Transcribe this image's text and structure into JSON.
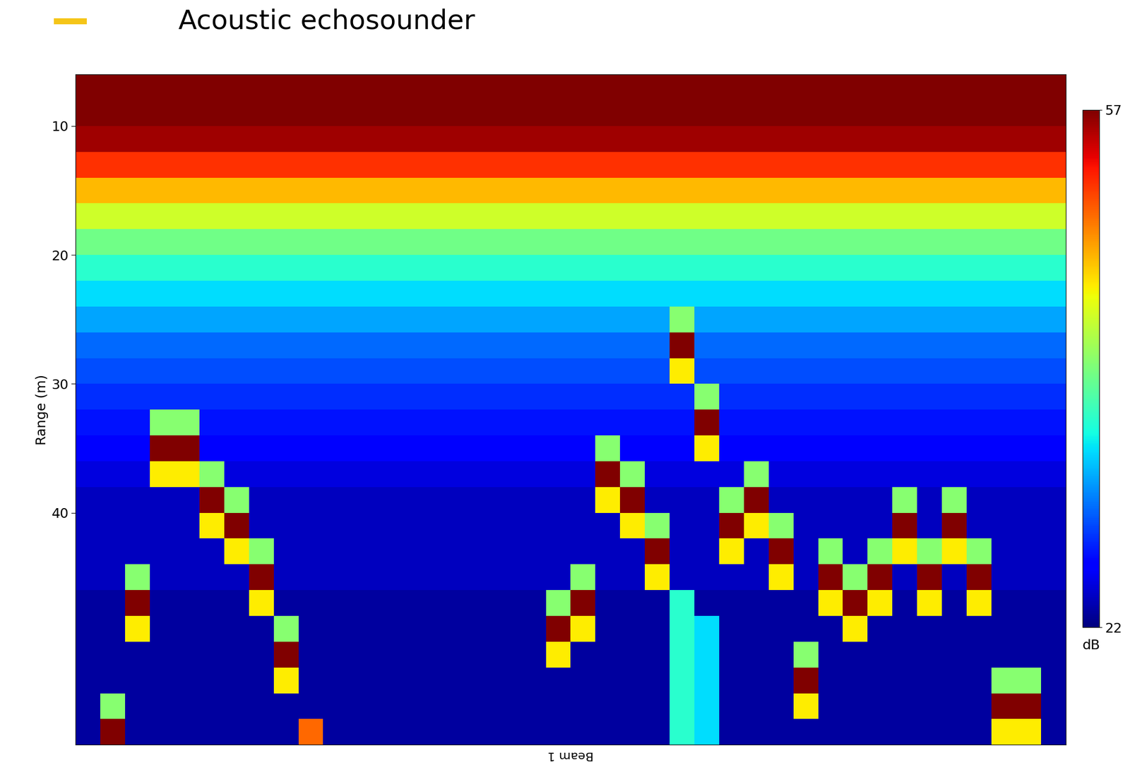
{
  "chart_data": {
    "type": "heatmap",
    "title": "Acoustic echosounder",
    "y_label": "Range (m)",
    "x_label": "Beam 1",
    "ylim": [
      58,
      6
    ],
    "yticks": [
      10,
      20,
      30,
      40
    ],
    "tick_labels": "y",
    "y_edges": [
      6,
      8,
      10,
      12,
      14,
      16,
      18,
      20,
      22,
      24,
      26,
      28,
      30,
      32,
      34,
      36,
      38,
      40,
      42,
      44,
      46,
      48,
      50,
      52,
      54,
      56,
      58
    ],
    "colorbar": {
      "range": [
        22,
        57
      ],
      "ticks": [
        22,
        57
      ],
      "label": "dB"
    },
    "cells": [
      [
        57,
        57,
        57,
        57,
        57,
        57,
        57,
        57,
        57,
        57,
        57,
        57,
        57,
        57,
        57,
        57,
        57,
        57,
        57,
        57,
        57,
        57,
        57,
        57,
        57,
        57,
        57,
        57,
        57,
        57,
        57,
        57,
        57,
        57,
        57,
        57,
        57,
        57,
        57,
        57
      ],
      [
        57,
        57,
        57,
        57,
        57,
        57,
        57,
        57,
        57,
        57,
        57,
        57,
        57,
        57,
        57,
        57,
        57,
        57,
        57,
        57,
        57,
        57,
        57,
        57,
        57,
        57,
        57,
        57,
        57,
        57,
        57,
        57,
        57,
        57,
        57,
        57,
        57,
        57,
        57,
        57
      ],
      [
        56,
        56,
        56,
        56,
        56,
        56,
        56,
        56,
        56,
        56,
        56,
        56,
        56,
        56,
        56,
        56,
        56,
        56,
        56,
        56,
        56,
        56,
        56,
        56,
        56,
        56,
        56,
        56,
        56,
        56,
        56,
        56,
        56,
        56,
        56,
        56,
        56,
        56,
        56,
        56
      ],
      [
        52,
        52,
        52,
        52,
        52,
        52,
        52,
        52,
        52,
        52,
        52,
        52,
        52,
        52,
        52,
        52,
        52,
        52,
        52,
        52,
        52,
        52,
        52,
        52,
        52,
        52,
        52,
        52,
        52,
        52,
        52,
        52,
        52,
        52,
        52,
        52,
        52,
        52,
        52,
        52
      ],
      [
        47,
        47,
        47,
        47,
        47,
        47,
        47,
        47,
        47,
        47,
        47,
        47,
        47,
        47,
        47,
        47,
        47,
        47,
        47,
        47,
        47,
        47,
        47,
        47,
        47,
        47,
        47,
        47,
        47,
        47,
        47,
        47,
        47,
        47,
        47,
        47,
        47,
        47,
        47,
        47
      ],
      [
        43,
        43,
        43,
        43,
        43,
        43,
        43,
        43,
        43,
        43,
        43,
        43,
        43,
        43,
        43,
        43,
        43,
        43,
        43,
        43,
        43,
        43,
        43,
        43,
        43,
        43,
        43,
        43,
        43,
        43,
        43,
        43,
        43,
        43,
        43,
        43,
        43,
        43,
        43,
        43
      ],
      [
        39,
        39,
        39,
        39,
        39,
        39,
        39,
        39,
        39,
        39,
        39,
        39,
        39,
        39,
        39,
        39,
        39,
        39,
        39,
        39,
        39,
        39,
        39,
        39,
        39,
        39,
        39,
        39,
        39,
        39,
        39,
        39,
        39,
        39,
        39,
        39,
        39,
        39,
        39,
        39
      ],
      [
        36,
        36,
        36,
        36,
        36,
        36,
        36,
        36,
        36,
        36,
        36,
        36,
        36,
        36,
        36,
        36,
        36,
        36,
        36,
        36,
        36,
        36,
        36,
        36,
        36,
        36,
        36,
        36,
        36,
        36,
        36,
        36,
        36,
        36,
        36,
        36,
        36,
        36,
        36,
        36
      ],
      [
        34,
        34,
        34,
        34,
        34,
        34,
        34,
        34,
        34,
        34,
        34,
        34,
        34,
        34,
        34,
        34,
        34,
        34,
        34,
        34,
        34,
        34,
        34,
        34,
        34,
        34,
        34,
        34,
        34,
        34,
        34,
        34,
        34,
        34,
        34,
        34,
        34,
        34,
        34,
        34
      ],
      [
        32,
        32,
        32,
        32,
        32,
        32,
        32,
        32,
        32,
        32,
        32,
        32,
        32,
        32,
        32,
        32,
        32,
        32,
        32,
        32,
        32,
        32,
        32,
        32,
        40,
        32,
        32,
        32,
        32,
        32,
        32,
        32,
        32,
        32,
        32,
        32,
        32,
        32,
        32,
        32
      ],
      [
        30,
        30,
        30,
        30,
        30,
        30,
        30,
        30,
        30,
        30,
        30,
        30,
        30,
        30,
        30,
        30,
        30,
        30,
        30,
        30,
        30,
        30,
        30,
        30,
        57,
        30,
        30,
        30,
        30,
        30,
        30,
        30,
        30,
        30,
        30,
        30,
        30,
        30,
        30,
        30
      ],
      [
        29,
        29,
        29,
        29,
        29,
        29,
        29,
        29,
        29,
        29,
        29,
        29,
        29,
        29,
        29,
        29,
        29,
        29,
        29,
        29,
        29,
        29,
        29,
        29,
        45,
        29,
        29,
        29,
        29,
        29,
        29,
        29,
        29,
        29,
        29,
        29,
        29,
        29,
        29,
        29
      ],
      [
        28,
        28,
        28,
        28,
        28,
        28,
        28,
        28,
        28,
        28,
        28,
        28,
        28,
        28,
        28,
        28,
        28,
        28,
        28,
        28,
        28,
        28,
        28,
        28,
        28,
        40,
        28,
        28,
        28,
        28,
        28,
        28,
        28,
        28,
        28,
        28,
        28,
        28,
        28,
        28
      ],
      [
        27,
        27,
        27,
        40,
        40,
        27,
        27,
        27,
        27,
        27,
        27,
        27,
        27,
        27,
        27,
        27,
        27,
        27,
        27,
        27,
        27,
        27,
        27,
        27,
        27,
        57,
        27,
        27,
        27,
        27,
        27,
        27,
        27,
        27,
        27,
        27,
        27,
        27,
        27,
        27
      ],
      [
        26,
        26,
        26,
        57,
        57,
        26,
        26,
        26,
        26,
        26,
        26,
        26,
        26,
        26,
        26,
        26,
        26,
        26,
        26,
        26,
        26,
        40,
        26,
        26,
        26,
        45,
        26,
        26,
        26,
        26,
        26,
        26,
        26,
        26,
        26,
        26,
        26,
        26,
        26,
        26
      ],
      [
        25,
        25,
        25,
        45,
        45,
        40,
        25,
        25,
        25,
        25,
        25,
        25,
        25,
        25,
        25,
        25,
        25,
        25,
        25,
        25,
        25,
        57,
        40,
        25,
        25,
        25,
        25,
        40,
        25,
        25,
        25,
        25,
        25,
        25,
        25,
        25,
        25,
        25,
        25,
        25
      ],
      [
        24,
        24,
        24,
        24,
        24,
        57,
        40,
        24,
        24,
        24,
        24,
        24,
        24,
        24,
        24,
        24,
        24,
        24,
        24,
        24,
        24,
        45,
        57,
        24,
        24,
        24,
        40,
        57,
        24,
        24,
        24,
        24,
        24,
        40,
        24,
        40,
        24,
        24,
        24,
        24
      ],
      [
        24,
        24,
        24,
        24,
        24,
        45,
        57,
        24,
        24,
        24,
        24,
        24,
        24,
        24,
        24,
        24,
        24,
        24,
        24,
        24,
        24,
        24,
        45,
        40,
        24,
        24,
        57,
        45,
        40,
        24,
        24,
        24,
        24,
        57,
        24,
        57,
        24,
        24,
        24,
        24
      ],
      [
        24,
        24,
        24,
        24,
        24,
        24,
        45,
        40,
        24,
        24,
        24,
        24,
        24,
        24,
        24,
        24,
        24,
        24,
        24,
        24,
        24,
        24,
        24,
        57,
        24,
        24,
        45,
        24,
        57,
        24,
        40,
        24,
        40,
        45,
        40,
        45,
        40,
        24,
        24,
        24
      ],
      [
        24,
        24,
        40,
        24,
        24,
        24,
        24,
        57,
        24,
        24,
        24,
        24,
        24,
        24,
        24,
        24,
        24,
        24,
        24,
        24,
        40,
        24,
        24,
        45,
        24,
        24,
        24,
        24,
        45,
        24,
        57,
        40,
        57,
        24,
        57,
        24,
        57,
        24,
        24,
        24
      ],
      [
        23,
        23,
        57,
        23,
        23,
        23,
        23,
        45,
        23,
        23,
        23,
        23,
        23,
        23,
        23,
        23,
        23,
        23,
        23,
        40,
        57,
        23,
        23,
        23,
        36,
        23,
        23,
        23,
        23,
        23,
        45,
        57,
        45,
        23,
        45,
        23,
        45,
        23,
        23,
        23
      ],
      [
        23,
        23,
        45,
        23,
        23,
        23,
        23,
        23,
        40,
        23,
        23,
        23,
        23,
        23,
        23,
        23,
        23,
        23,
        23,
        57,
        45,
        23,
        23,
        23,
        36,
        34,
        23,
        23,
        23,
        23,
        23,
        45,
        23,
        23,
        23,
        23,
        23,
        23,
        23,
        23
      ],
      [
        23,
        23,
        23,
        23,
        23,
        23,
        23,
        23,
        57,
        23,
        23,
        23,
        23,
        23,
        23,
        23,
        23,
        23,
        23,
        45,
        23,
        23,
        23,
        23,
        36,
        34,
        23,
        23,
        23,
        40,
        23,
        23,
        23,
        23,
        23,
        23,
        23,
        23,
        23,
        23
      ],
      [
        23,
        23,
        23,
        23,
        23,
        23,
        23,
        23,
        45,
        23,
        23,
        23,
        23,
        23,
        23,
        23,
        23,
        23,
        23,
        23,
        23,
        23,
        23,
        23,
        36,
        34,
        23,
        23,
        23,
        57,
        23,
        23,
        23,
        23,
        23,
        23,
        23,
        40,
        40,
        23
      ],
      [
        23,
        40,
        23,
        23,
        23,
        23,
        23,
        23,
        23,
        23,
        23,
        23,
        23,
        23,
        23,
        23,
        23,
        23,
        23,
        23,
        23,
        23,
        23,
        23,
        36,
        34,
        23,
        23,
        23,
        45,
        23,
        23,
        23,
        23,
        23,
        23,
        23,
        57,
        57,
        23
      ],
      [
        23,
        57,
        23,
        23,
        23,
        23,
        23,
        23,
        23,
        50,
        23,
        23,
        23,
        23,
        23,
        23,
        23,
        23,
        23,
        23,
        23,
        23,
        23,
        23,
        36,
        34,
        23,
        23,
        23,
        23,
        23,
        23,
        23,
        23,
        23,
        23,
        23,
        45,
        45,
        23
      ]
    ]
  }
}
